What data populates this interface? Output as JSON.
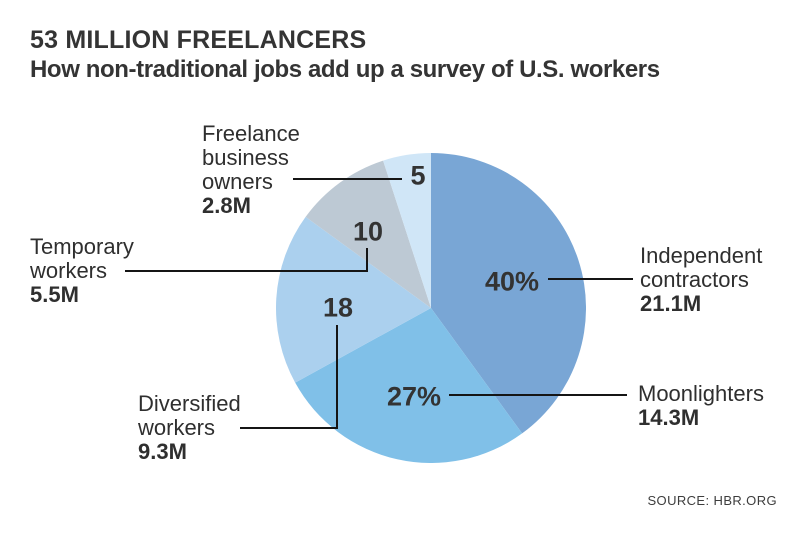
{
  "chart_data": {
    "type": "pie",
    "title": "53 MILLION FREELANCERS",
    "subtitle": "How non-traditional jobs add up a survey of U.S. workers",
    "source": "SOURCE: HBR.ORG",
    "start_angle_deg": 0,
    "direction": "clockwise",
    "legend_position": "none",
    "slices": [
      {
        "name": "Independent contractors",
        "name_lines": [
          "Independent",
          "contractors"
        ],
        "percent": 40,
        "percent_label": "40%",
        "millions_label": "21.1M",
        "color": "#79A6D5"
      },
      {
        "name": "Moonlighters",
        "name_lines": [
          "Moonlighters"
        ],
        "percent": 27,
        "percent_label": "27%",
        "millions_label": "14.3M",
        "color": "#80C0E8"
      },
      {
        "name": "Diversified workers",
        "name_lines": [
          "Diversified",
          "workers"
        ],
        "percent": 18,
        "percent_label": "18",
        "millions_label": "9.3M",
        "color": "#ABD0EE"
      },
      {
        "name": "Temporary workers",
        "name_lines": [
          "Temporary",
          "workers"
        ],
        "percent": 10,
        "percent_label": "10",
        "millions_label": "5.5M",
        "color": "#BDC9D4"
      },
      {
        "name": "Freelance business owners",
        "name_lines": [
          "Freelance",
          "business",
          "owners"
        ],
        "percent": 5,
        "percent_label": "5",
        "millions_label": "2.8M",
        "color": "#D0E6F7"
      }
    ]
  }
}
